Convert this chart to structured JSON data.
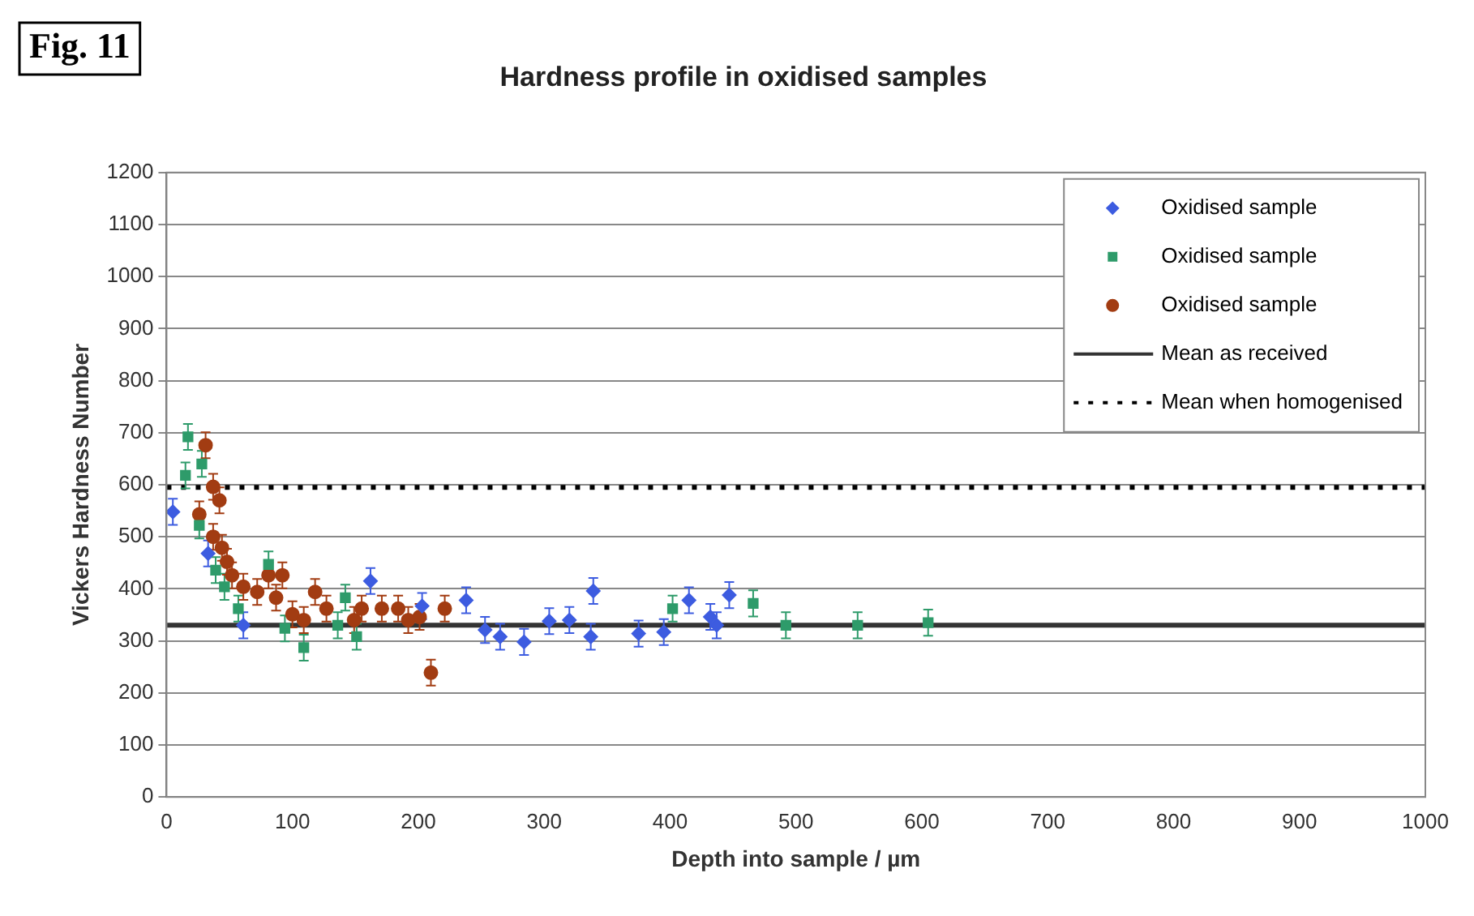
{
  "chart_data": {
    "type": "scatter",
    "title": "Hardness profile in oxidised samples",
    "xlabel": "Depth into sample / µm",
    "ylabel": "Vickers Hardness Number",
    "annotations": [
      "Fig. 11"
    ],
    "xlim": [
      0,
      1000
    ],
    "xticks": [
      0,
      100,
      200,
      300,
      400,
      500,
      600,
      700,
      800,
      900,
      1000
    ],
    "ylim": [
      0,
      1200
    ],
    "yticks": [
      0,
      100,
      200,
      300,
      400,
      500,
      600,
      700,
      800,
      900,
      1000,
      1100,
      1200
    ],
    "grid": "y",
    "legend": "top right",
    "series": [
      {
        "name": "Oxidised sample",
        "color": "#3d5ce0",
        "marker": "diamond",
        "x": [
          5,
          33,
          61,
          162,
          203,
          238,
          253,
          265,
          284,
          304,
          320,
          339,
          337,
          375,
          395,
          415,
          432,
          437,
          447
        ],
        "values": [
          548,
          468,
          330,
          415,
          367,
          378,
          321,
          308,
          298,
          338,
          340,
          396,
          308,
          314,
          317,
          378,
          346,
          330,
          388
        ],
        "errors": [
          25,
          25,
          25,
          25,
          25,
          25,
          25,
          25,
          25,
          25,
          25,
          25,
          25,
          25,
          25,
          25,
          25,
          25,
          25
        ]
      },
      {
        "name": "Oxidised sample",
        "color": "#2e9b6a",
        "marker": "square",
        "x": [
          17,
          15,
          28,
          26,
          39,
          46,
          57,
          81,
          94,
          109,
          136,
          142,
          151,
          402,
          466,
          492,
          549,
          605
        ],
        "values": [
          692,
          618,
          640,
          522,
          436,
          404,
          362,
          447,
          324,
          287,
          330,
          383,
          308,
          362,
          372,
          330,
          330,
          335
        ],
        "errors": [
          25,
          25,
          25,
          25,
          25,
          25,
          25,
          25,
          25,
          25,
          25,
          25,
          25,
          25,
          25,
          25,
          25,
          25
        ]
      },
      {
        "name": "Oxidised sample",
        "color": "#a23c12",
        "marker": "circle",
        "x": [
          31,
          37,
          42,
          26,
          37,
          44,
          48,
          52,
          61,
          72,
          81,
          92,
          87,
          100,
          109,
          118,
          127,
          149,
          155,
          171,
          184,
          192,
          201,
          210,
          221
        ],
        "values": [
          676,
          596,
          570,
          543,
          500,
          479,
          452,
          426,
          404,
          394,
          426,
          426,
          383,
          351,
          340,
          394,
          362,
          340,
          362,
          362,
          362,
          340,
          346,
          239,
          362
        ],
        "errors": [
          25,
          25,
          25,
          25,
          25,
          25,
          25,
          25,
          25,
          25,
          25,
          25,
          25,
          25,
          25,
          25,
          25,
          25,
          25,
          25,
          25,
          25,
          25,
          25,
          25
        ]
      }
    ],
    "ref_lines": [
      {
        "axis": "y",
        "value": 330,
        "label": "Mean as received",
        "color": "#333333",
        "line_style": "solid"
      },
      {
        "axis": "y",
        "value": 595,
        "label": "Mean when homogenised",
        "color": "#000000",
        "line_style": "dotted"
      }
    ]
  }
}
